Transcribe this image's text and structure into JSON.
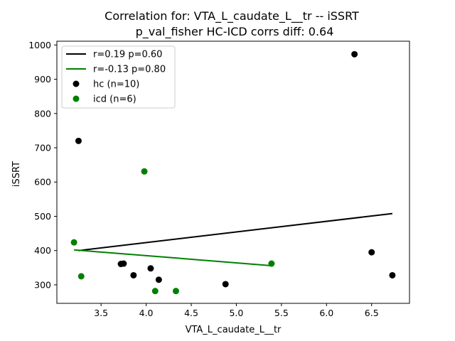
{
  "chart_data": {
    "type": "scatter",
    "title_line1": "Correlation for: VTA_L_caudate_L__tr -- iSSRT",
    "title_line2": "p_val_fisher HC-ICD corrs diff: 0.64",
    "xlabel": "VTA_L_caudate_L__tr",
    "ylabel": "iSSRT",
    "xlim": [
      3.01,
      6.92
    ],
    "ylim": [
      246,
      1011
    ],
    "xticks": [
      3.5,
      4.0,
      4.5,
      5.0,
      5.5,
      6.0,
      6.5
    ],
    "xtick_labels": [
      "3.5",
      "4.0",
      "4.5",
      "5.0",
      "5.5",
      "6.0",
      "6.5"
    ],
    "yticks": [
      300,
      400,
      500,
      600,
      700,
      800,
      900,
      1000
    ],
    "ytick_labels": [
      "300",
      "400",
      "500",
      "600",
      "700",
      "800",
      "900",
      "1000"
    ],
    "grid": false,
    "legend_position": "top-left",
    "series": [
      {
        "name": "hc (n=10)",
        "kind": "scatter",
        "color": "#000000",
        "x": [
          6.31,
          3.25,
          6.5,
          6.73,
          3.72,
          3.75,
          3.86,
          4.05,
          4.14,
          4.88
        ],
        "y": [
          973,
          720,
          395,
          328,
          361,
          362,
          328,
          348,
          315,
          302
        ]
      },
      {
        "name": "icd (n=6)",
        "kind": "scatter",
        "color": "#008000",
        "x": [
          3.98,
          3.2,
          3.28,
          5.39,
          4.1,
          4.33
        ],
        "y": [
          631,
          424,
          325,
          362,
          282,
          282
        ]
      }
    ],
    "fit_lines": [
      {
        "name": "r=0.19 p=0.60",
        "color": "#000000",
        "x": [
          3.25,
          6.73
        ],
        "y": [
          400,
          508
        ]
      },
      {
        "name": "r=-0.13 p=0.80",
        "color": "#008000",
        "x": [
          3.2,
          5.39
        ],
        "y": [
          402,
          356
        ]
      }
    ]
  }
}
